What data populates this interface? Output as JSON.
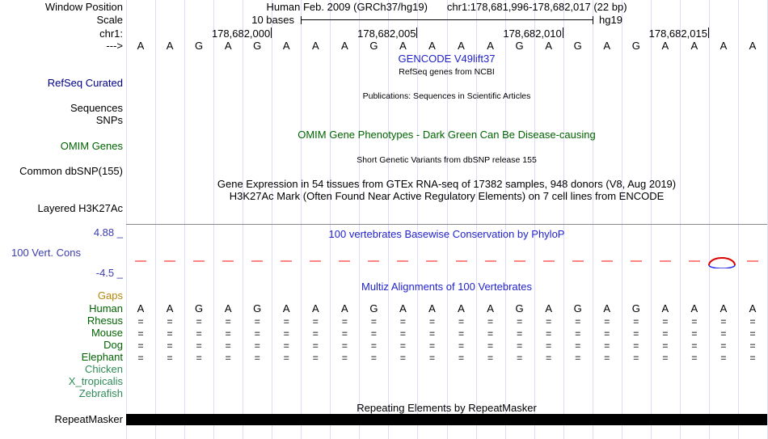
{
  "colors": {
    "guideline": "#dcdcfa",
    "link_blue": "#2222cc",
    "navy": "#000088",
    "cons_blue": "#3b3bb0",
    "dark_green": "#006400",
    "light_green": "#2e8b57",
    "gaps_orange": "#b8860b",
    "dash_red": "#ff8585",
    "gap_gray": "#606060",
    "arc_red": "#dd0000",
    "arc_blue": "#2222ee",
    "repeat_black": "#000000"
  },
  "header": {
    "assembly": "Human Feb. 2009 (GRCh37/hg19)",
    "position": "chr1:178,681,996-178,682,017 (22 bp)",
    "scale_label": "10 bases",
    "assembly_short": "hg19"
  },
  "ruler_ticks": [
    {
      "label": "178,682,000"
    },
    {
      "label": "178,682,005"
    },
    {
      "label": "178,682,010"
    },
    {
      "label": "178,682,015"
    }
  ],
  "sequence": "AAGAGAAAGAAAAGAGAGAAAA",
  "left_labels": [
    {
      "text": "Window Position",
      "color": "#000000"
    },
    {
      "text": "Scale",
      "color": "#000000"
    },
    {
      "text": "chr1:",
      "color": "#000000"
    },
    {
      "text": "--->",
      "color": "#000000"
    },
    {
      "text": "RefSeq Curated",
      "color": "#000088"
    },
    {
      "text": "Sequences",
      "color": "#000000"
    },
    {
      "text": "SNPs",
      "color": "#000000"
    },
    {
      "text": "OMIM Genes",
      "color": "#006400"
    },
    {
      "text": "Common dbSNP(155)",
      "color": "#000000"
    },
    {
      "text": "Layered H3K27Ac",
      "color": "#000000"
    },
    {
      "text": "4.88 _",
      "color": "#3b3bb0"
    },
    {
      "text": "100 Vert. Cons",
      "color": "#3b3bb0"
    },
    {
      "text": "-4.5 _",
      "color": "#3b3bb0"
    },
    {
      "text": "Gaps",
      "color": "#b8860b"
    },
    {
      "text": "Human",
      "color": "#006400"
    },
    {
      "text": "Rhesus",
      "color": "#006400"
    },
    {
      "text": "Mouse",
      "color": "#006400"
    },
    {
      "text": "Dog",
      "color": "#006400"
    },
    {
      "text": "Elephant",
      "color": "#006400"
    },
    {
      "text": "Chicken",
      "color": "#2e8b57"
    },
    {
      "text": "X_tropicalis",
      "color": "#2e8b57"
    },
    {
      "text": "Zebrafish",
      "color": "#2e8b57"
    },
    {
      "text": "RepeatMasker",
      "color": "#000000"
    }
  ],
  "center_labels": {
    "gencode": "GENCODE V49lift37",
    "refseq_note": "RefSeq genes from NCBI",
    "publications": "Publications: Sequences in Scientific Articles",
    "omim": "OMIM Gene Phenotypes - Dark Green Can Be Disease-causing",
    "dbsnp": "Short Genetic Variants from dbSNP release 155",
    "gtex": "Gene Expression in 54 tissues from GTEx RNA-seq of 17382 samples, 948 donors (V8, Aug 2019)",
    "h3k27ac": "H3K27Ac Mark (Often Found Near Active Regulatory Elements) on 7 cell lines from ENCODE",
    "phylop": "100 vertebrates Basewise Conservation by PhyloP",
    "multiz": "Multiz Alignments of 100 Vertebrates",
    "repeatmasker": "Repeating Elements by RepeatMasker"
  },
  "conservation": {
    "upper_limit": 4.88,
    "lower_limit": -4.5
  },
  "multiz": {
    "human_sequence": "AAGAGAAAGAAAAGAGAGAAAA",
    "aligned_species": [
      "Rhesus",
      "Mouse",
      "Dog",
      "Elephant"
    ],
    "unaligned_species": [
      "Chicken",
      "X_tropicalis",
      "Zebrafish"
    ],
    "gap_glyph": "="
  }
}
